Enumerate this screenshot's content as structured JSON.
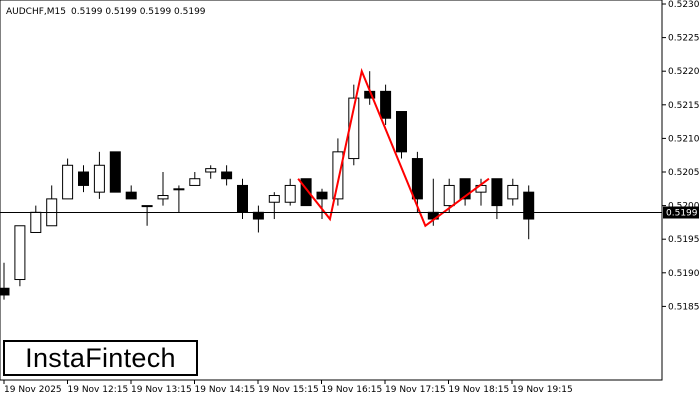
{
  "header": {
    "symbol_timeframe": "AUDCHF,M15",
    "ohlc": "0.5199 0.5199 0.5199 0.5199"
  },
  "logo": {
    "text": "InstaFintech"
  },
  "colors": {
    "background": "#ffffff",
    "axis": "#000000",
    "bull_fill": "#ffffff",
    "bear_fill": "#000000",
    "pattern_line": "#ff0000",
    "current_price_line": "#000000"
  },
  "chart_data": {
    "type": "candlestick",
    "symbol": "AUDCHF",
    "timeframe": "M15",
    "ylim": [
      0.518,
      0.523
    ],
    "y_ticks": [
      "0.5230",
      "0.5225",
      "0.5220",
      "0.5215",
      "0.5210",
      "0.5205",
      "0.5200",
      "0.5195",
      "0.5190",
      "0.5185"
    ],
    "x_tick_labels": [
      "19 Nov 2025",
      "19 Nov 12:15",
      "19 Nov 13:15",
      "19 Nov 14:15",
      "19 Nov 15:15",
      "19 Nov 16:15",
      "19 Nov 17:15",
      "19 Nov 18:15",
      "19 Nov 19:15"
    ],
    "current_price": 0.5199,
    "current_price_label": "0.5199",
    "candles": [
      {
        "o": 0.51877,
        "h": 0.51915,
        "l": 0.5186,
        "c": 0.51867
      },
      {
        "o": 0.5189,
        "h": 0.5197,
        "l": 0.5188,
        "c": 0.5197
      },
      {
        "o": 0.5196,
        "h": 0.52,
        "l": 0.5196,
        "c": 0.5199
      },
      {
        "o": 0.5197,
        "h": 0.5203,
        "l": 0.5197,
        "c": 0.5201
      },
      {
        "o": 0.5201,
        "h": 0.5207,
        "l": 0.5201,
        "c": 0.5206
      },
      {
        "o": 0.5205,
        "h": 0.5206,
        "l": 0.5202,
        "c": 0.5203
      },
      {
        "o": 0.5202,
        "h": 0.5208,
        "l": 0.5201,
        "c": 0.5206
      },
      {
        "o": 0.5208,
        "h": 0.5208,
        "l": 0.5202,
        "c": 0.5202
      },
      {
        "o": 0.5202,
        "h": 0.5203,
        "l": 0.5201,
        "c": 0.5201
      },
      {
        "o": 0.52,
        "h": 0.52,
        "l": 0.5197,
        "c": 0.52
      },
      {
        "o": 0.5201,
        "h": 0.5205,
        "l": 0.52,
        "c": 0.52015
      },
      {
        "o": 0.52025,
        "h": 0.5203,
        "l": 0.5199,
        "c": 0.52025
      },
      {
        "o": 0.5203,
        "h": 0.5205,
        "l": 0.5203,
        "c": 0.5204
      },
      {
        "o": 0.5205,
        "h": 0.5206,
        "l": 0.5204,
        "c": 0.52055
      },
      {
        "o": 0.5205,
        "h": 0.5206,
        "l": 0.5203,
        "c": 0.5204
      },
      {
        "o": 0.5203,
        "h": 0.5204,
        "l": 0.5198,
        "c": 0.5199
      },
      {
        "o": 0.5199,
        "h": 0.52,
        "l": 0.5196,
        "c": 0.5198
      },
      {
        "o": 0.52005,
        "h": 0.5202,
        "l": 0.5198,
        "c": 0.52015
      },
      {
        "o": 0.52005,
        "h": 0.5204,
        "l": 0.52,
        "c": 0.5203
      },
      {
        "o": 0.5204,
        "h": 0.5204,
        "l": 0.52,
        "c": 0.52
      },
      {
        "o": 0.5202,
        "h": 0.52025,
        "l": 0.5198,
        "c": 0.5201
      },
      {
        "o": 0.5201,
        "h": 0.521,
        "l": 0.52,
        "c": 0.5208
      },
      {
        "o": 0.5207,
        "h": 0.5218,
        "l": 0.5206,
        "c": 0.5216
      },
      {
        "o": 0.5217,
        "h": 0.522,
        "l": 0.5215,
        "c": 0.5216
      },
      {
        "o": 0.5217,
        "h": 0.5218,
        "l": 0.5212,
        "c": 0.5213
      },
      {
        "o": 0.5214,
        "h": 0.5214,
        "l": 0.5207,
        "c": 0.5208
      },
      {
        "o": 0.5207,
        "h": 0.5208,
        "l": 0.5199,
        "c": 0.5201
      },
      {
        "o": 0.5199,
        "h": 0.5204,
        "l": 0.5197,
        "c": 0.5198
      },
      {
        "o": 0.52,
        "h": 0.5204,
        "l": 0.5199,
        "c": 0.5203
      },
      {
        "o": 0.5204,
        "h": 0.5204,
        "l": 0.52,
        "c": 0.5201
      },
      {
        "o": 0.5202,
        "h": 0.5204,
        "l": 0.52,
        "c": 0.5203
      },
      {
        "o": 0.5204,
        "h": 0.5204,
        "l": 0.5198,
        "c": 0.52
      },
      {
        "o": 0.5201,
        "h": 0.5204,
        "l": 0.52,
        "c": 0.5203
      },
      {
        "o": 0.5202,
        "h": 0.5203,
        "l": 0.5195,
        "c": 0.5198
      }
    ],
    "pattern": {
      "name": "",
      "points": [
        {
          "candle": 18.5,
          "price": 0.5204
        },
        {
          "candle": 20.5,
          "price": 0.5198
        },
        {
          "candle": 22.5,
          "price": 0.522
        },
        {
          "candle": 26.5,
          "price": 0.5197
        },
        {
          "candle": 30.5,
          "price": 0.5204
        }
      ]
    }
  }
}
